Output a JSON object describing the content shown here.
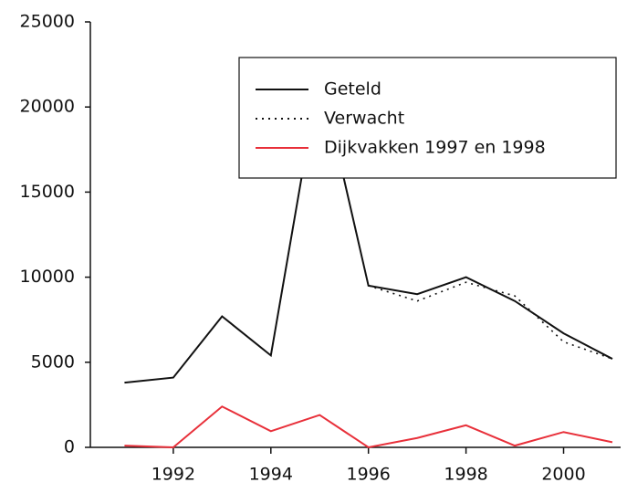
{
  "chart_data": {
    "type": "line",
    "x": [
      1991,
      1992,
      1993,
      1994,
      1995,
      1996,
      1997,
      1998,
      1999,
      2000,
      2001
    ],
    "series": [
      {
        "name": "Geteld",
        "color": "#111111",
        "style": "solid",
        "values": [
          3800,
          4100,
          7700,
          5400,
          22000,
          9500,
          9000,
          10000,
          8600,
          6700,
          5200
        ]
      },
      {
        "name": "Verwacht",
        "color": "#111111",
        "style": "dotted",
        "values": [
          null,
          null,
          null,
          null,
          null,
          9500,
          8600,
          9700,
          8900,
          6200,
          5200
        ]
      },
      {
        "name": "Dijkvakken 1997 en 1998",
        "color": "#e8303a",
        "style": "solid",
        "values": [
          100,
          0,
          2400,
          950,
          1900,
          0,
          550,
          1300,
          100,
          900,
          300
        ]
      }
    ],
    "xlim": [
      1990.3,
      2001.3
    ],
    "xticks": [
      1992,
      1994,
      1996,
      1998,
      2000
    ],
    "ylim": [
      0,
      25000
    ],
    "yticks": [
      0,
      5000,
      10000,
      15000,
      20000,
      25000
    ],
    "legend": "upper right"
  }
}
